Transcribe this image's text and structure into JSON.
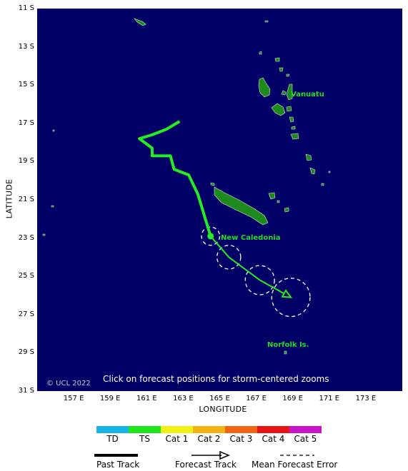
{
  "axes": {
    "latitude_title": "LATITUDE",
    "longitude_title": "LONGITUDE",
    "lat_ticks": [
      "11 S",
      "13 S",
      "15 S",
      "17 S",
      "19 S",
      "21 S",
      "23 S",
      "25 S",
      "27 S",
      "29 S",
      "31 S"
    ],
    "lon_ticks": [
      "157 E",
      "159 E",
      "161 E",
      "163 E",
      "165 E",
      "167 E",
      "169 E",
      "171 E",
      "173 E"
    ]
  },
  "map_labels": {
    "vanuatu": "Vanuatu",
    "new_caledonia": "New Caledonia",
    "norfolk": "Norfolk Is."
  },
  "map_notes": {
    "copyright": "© UCL 2022",
    "instruction": "Click on forecast positions for storm-centered zooms"
  },
  "legend": {
    "categories": [
      {
        "label": "TD",
        "color": "#19b4e6"
      },
      {
        "label": "TS",
        "color": "#1ee61e"
      },
      {
        "label": "Cat 1",
        "color": "#f0f014"
      },
      {
        "label": "Cat 2",
        "color": "#f0b414"
      },
      {
        "label": "Cat 3",
        "color": "#f06414"
      },
      {
        "label": "Cat 4",
        "color": "#e61414"
      },
      {
        "label": "Cat 5",
        "color": "#c814c8"
      }
    ],
    "past_track": "Past Track",
    "forecast_track": "Forecast Track",
    "mean_error": "Mean Forecast Error"
  },
  "colors": {
    "ocean": "#000066",
    "land": "#1e8a1e",
    "track": "#22ee22",
    "label_green": "#22dd22",
    "error_circle": "#ffffff"
  },
  "track": {
    "past_category": "TS",
    "forecast_category": "TS",
    "past_positions": [
      {
        "lon": 162.8,
        "lat": -16.9
      },
      {
        "lon": 162.1,
        "lat": -17.3
      },
      {
        "lon": 161.3,
        "lat": -17.6
      },
      {
        "lon": 160.6,
        "lat": -17.8
      },
      {
        "lon": 161.3,
        "lat": -18.3
      },
      {
        "lon": 161.3,
        "lat": -18.7
      },
      {
        "lon": 162.3,
        "lat": -18.7
      },
      {
        "lon": 162.5,
        "lat": -19.4
      },
      {
        "lon": 163.3,
        "lat": -19.7
      },
      {
        "lon": 163.8,
        "lat": -20.7
      },
      {
        "lon": 164.5,
        "lat": -22.9
      }
    ],
    "forecast_positions": [
      {
        "lon": 164.5,
        "lat": -22.9
      },
      {
        "lon": 165.5,
        "lat": -24.0
      },
      {
        "lon": 167.2,
        "lat": -25.2
      },
      {
        "lon": 168.9,
        "lat": -26.1
      }
    ]
  }
}
